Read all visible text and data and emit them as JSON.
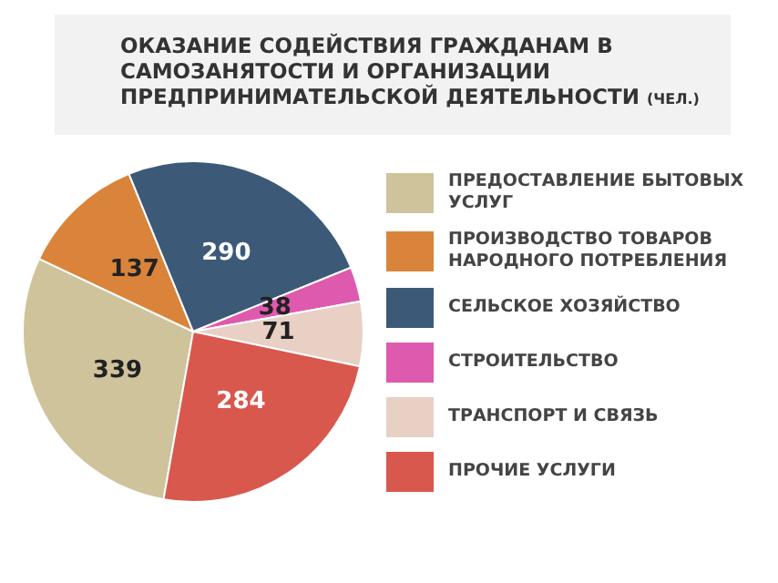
{
  "chart_data": {
    "type": "pie",
    "title": "ОКАЗАНИЕ СОДЕЙСТВИЯ ГРАЖДАНАМ В САМОЗАНЯТОСТИ И ОРГАНИЗАЦИИ ПРЕДПРИНИМАТЕЛЬСКОЙ ДЕЯТЕЛЬНОСТИ",
    "subtitle": "(ЧЕЛ.)",
    "categories": [
      "ПРЕДОСТАВЛЕНИЕ БЫТОВЫХ УСЛУГ",
      "ПРОИЗВОДСТВО ТОВАРОВ НАРОДНОГО ПОТРЕБЛЕНИЯ",
      "СЕЛЬСКОЕ ХОЗЯЙСТВО",
      "СТРОИТЕЛЬСТВО",
      "ТРАНСПОРТ И СВЯЗЬ",
      "ПРОЧИЕ УСЛУГИ"
    ],
    "values": [
      339,
      137,
      290,
      38,
      71,
      284
    ],
    "colors": [
      "#cfc39b",
      "#d9843a",
      "#3c5a78",
      "#de5aae",
      "#e8d0c4",
      "#d9584e"
    ],
    "data_labels": true,
    "legend": "right"
  }
}
